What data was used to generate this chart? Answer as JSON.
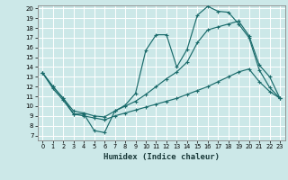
{
  "xlabel": "Humidex (Indice chaleur)",
  "bg_color": "#cce8e8",
  "grid_color": "#ffffff",
  "line_color": "#1a6b6b",
  "xlim": [
    -0.5,
    23.5
  ],
  "ylim": [
    7,
    20
  ],
  "xticks": [
    0,
    1,
    2,
    3,
    4,
    5,
    6,
    7,
    8,
    9,
    10,
    11,
    12,
    13,
    14,
    15,
    16,
    17,
    18,
    19,
    20,
    21,
    22,
    23
  ],
  "yticks": [
    7,
    8,
    9,
    10,
    11,
    12,
    13,
    14,
    15,
    16,
    17,
    18,
    19,
    20
  ],
  "line1_x": [
    0,
    1,
    2,
    3,
    4,
    5,
    6,
    7,
    8,
    9,
    10,
    11,
    12,
    13,
    14,
    15,
    16,
    17,
    18,
    19,
    20,
    21,
    22,
    23
  ],
  "line1_y": [
    13.4,
    12.0,
    10.8,
    9.2,
    9.2,
    7.5,
    7.3,
    9.5,
    10.1,
    11.3,
    15.7,
    17.3,
    17.3,
    14.0,
    15.8,
    19.3,
    20.2,
    19.7,
    19.6,
    18.4,
    17.0,
    13.7,
    11.9,
    10.8
  ],
  "line2_x": [
    0,
    1,
    2,
    3,
    4,
    5,
    6,
    7,
    8,
    9,
    10,
    11,
    12,
    13,
    14,
    15,
    16,
    17,
    18,
    19,
    20,
    21,
    22,
    23
  ],
  "line2_y": [
    13.4,
    12.0,
    10.8,
    9.5,
    9.3,
    9.0,
    8.9,
    9.5,
    10.0,
    10.5,
    11.2,
    12.0,
    12.8,
    13.5,
    14.5,
    16.5,
    17.8,
    18.1,
    18.4,
    18.7,
    17.2,
    14.2,
    13.0,
    10.8
  ],
  "line3_x": [
    0,
    1,
    2,
    3,
    4,
    5,
    6,
    7,
    8,
    9,
    10,
    11,
    12,
    13,
    14,
    15,
    16,
    17,
    18,
    19,
    20,
    21,
    22,
    23
  ],
  "line3_y": [
    13.4,
    11.8,
    10.6,
    9.2,
    9.0,
    8.8,
    8.6,
    9.0,
    9.3,
    9.6,
    9.9,
    10.2,
    10.5,
    10.8,
    11.2,
    11.6,
    12.0,
    12.5,
    13.0,
    13.5,
    13.8,
    12.5,
    11.5,
    10.8
  ]
}
